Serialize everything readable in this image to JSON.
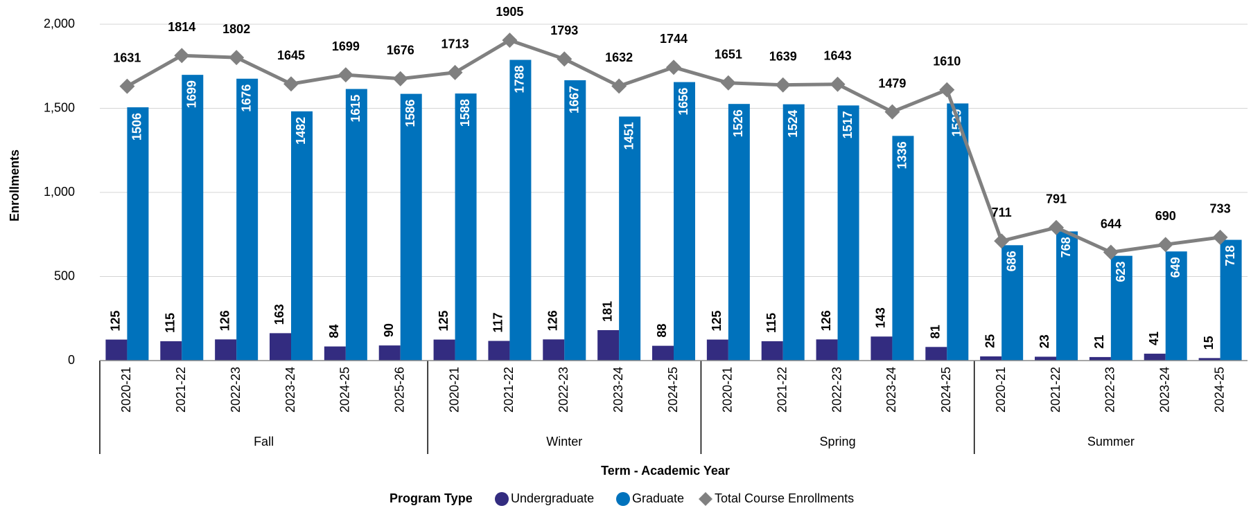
{
  "chart_data": {
    "type": "bar",
    "y_axis_label": "Enrollments",
    "x_axis_label": "Term - Academic Year",
    "legend_title": "Program Type",
    "groups": [
      {
        "name": "Fall",
        "categories": [
          "2020-21",
          "2021-22",
          "2022-23",
          "2023-24",
          "2024-25",
          "2025-26"
        ]
      },
      {
        "name": "Winter",
        "categories": [
          "2020-21",
          "2021-22",
          "2022-23",
          "2023-24",
          "2024-25"
        ]
      },
      {
        "name": "Spring",
        "categories": [
          "2020-21",
          "2021-22",
          "2022-23",
          "2023-24",
          "2024-25"
        ]
      },
      {
        "name": "Summer",
        "categories": [
          "2020-21",
          "2021-22",
          "2022-23",
          "2023-24",
          "2024-25"
        ]
      }
    ],
    "series": [
      {
        "name": "Undergraduate",
        "type": "bar",
        "color": "#332c80",
        "values": [
          125,
          115,
          126,
          163,
          84,
          90,
          125,
          117,
          126,
          181,
          88,
          125,
          115,
          126,
          143,
          81,
          25,
          23,
          21,
          41,
          15
        ]
      },
      {
        "name": "Graduate",
        "type": "bar",
        "color": "#0072bc",
        "values": [
          1506,
          1699,
          1676,
          1482,
          1615,
          1586,
          1588,
          1788,
          1667,
          1451,
          1656,
          1526,
          1524,
          1517,
          1336,
          1529,
          686,
          768,
          623,
          649,
          718
        ]
      },
      {
        "name": "Total Course Enrollments",
        "type": "line",
        "color": "#808080",
        "values": [
          1631,
          1814,
          1802,
          1645,
          1699,
          1676,
          1713,
          1905,
          1793,
          1632,
          1744,
          1651,
          1639,
          1643,
          1479,
          1610,
          711,
          791,
          644,
          690,
          733
        ]
      }
    ],
    "ylim": [
      0,
      2000
    ],
    "yticks": [
      0,
      500,
      {
        "value": 1000,
        "label": "1,000"
      },
      {
        "value": 1500,
        "label": "1,500"
      },
      {
        "value": 2000,
        "label": "2,000"
      }
    ],
    "grid": true,
    "legend": "bottom"
  }
}
